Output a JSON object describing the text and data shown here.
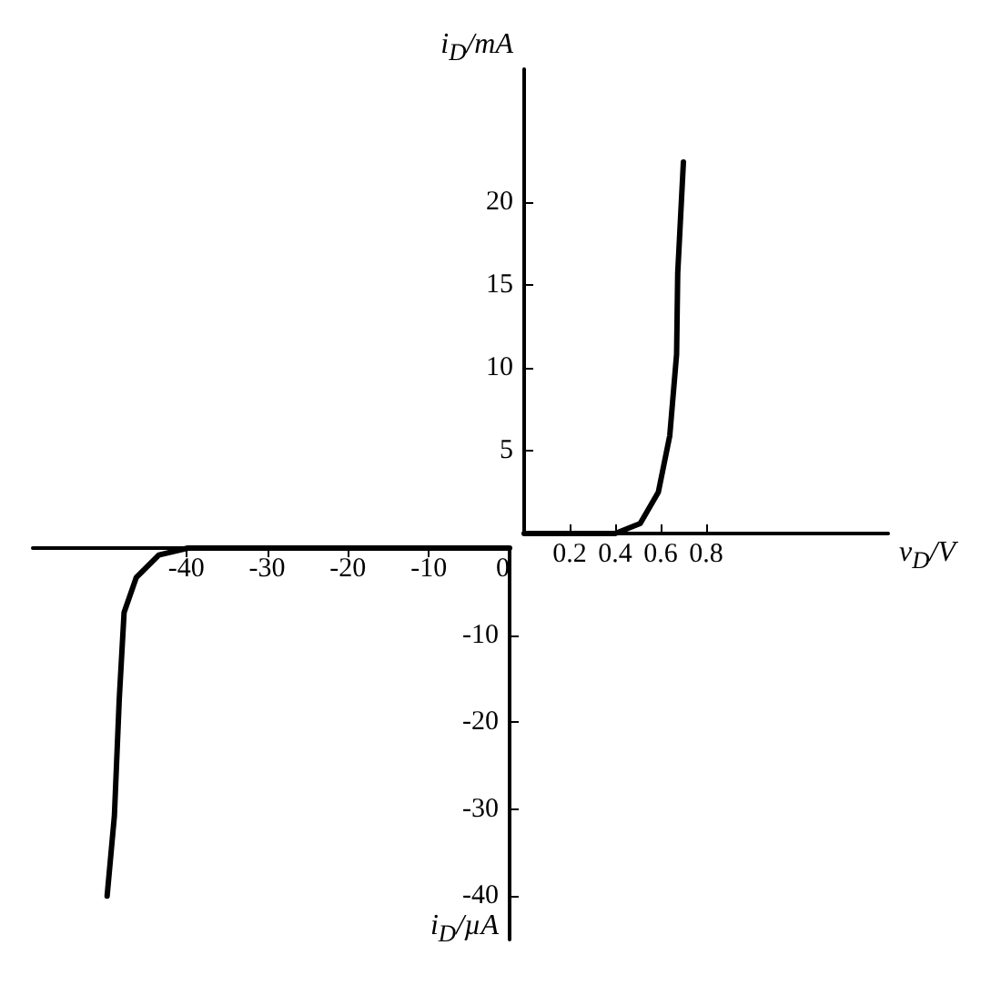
{
  "chart_data": [
    {
      "type": "line",
      "xlabel": "v$_{D}$/V",
      "ylabel": "i$_{D}$/mA",
      "color": "#000000",
      "x": [
        0,
        0.2,
        0.4,
        0.51,
        0.59,
        0.64,
        0.67,
        0.675,
        0.7
      ],
      "values": [
        0,
        0,
        0,
        0.6,
        2.5,
        5.9,
        10.8,
        15.7,
        22.4
      ],
      "xlim": [
        0,
        1.6
      ],
      "ylim": [
        0,
        28
      ],
      "xticks": [
        0.2,
        0.4,
        0.6,
        0.8
      ],
      "yticks": [
        5,
        10,
        15,
        20
      ]
    },
    {
      "type": "line",
      "ylabel": "i$_{D}$/µA",
      "color": "#000000",
      "x": [
        -49.8,
        -48.9,
        -48.3,
        -47.7,
        -46.2,
        -43.4,
        -39.8,
        -30,
        -20,
        -10,
        0
      ],
      "values": [
        -40,
        -30.8,
        -17.4,
        -7.4,
        -3.4,
        -0.8,
        0,
        0,
        0,
        0,
        0
      ],
      "xlim": [
        -59,
        0
      ],
      "ylim": [
        -45,
        0
      ],
      "xticks": [
        -40,
        -30,
        -20,
        -10,
        0
      ],
      "yticks": [
        -40,
        -30,
        -20,
        -10
      ]
    }
  ]
}
